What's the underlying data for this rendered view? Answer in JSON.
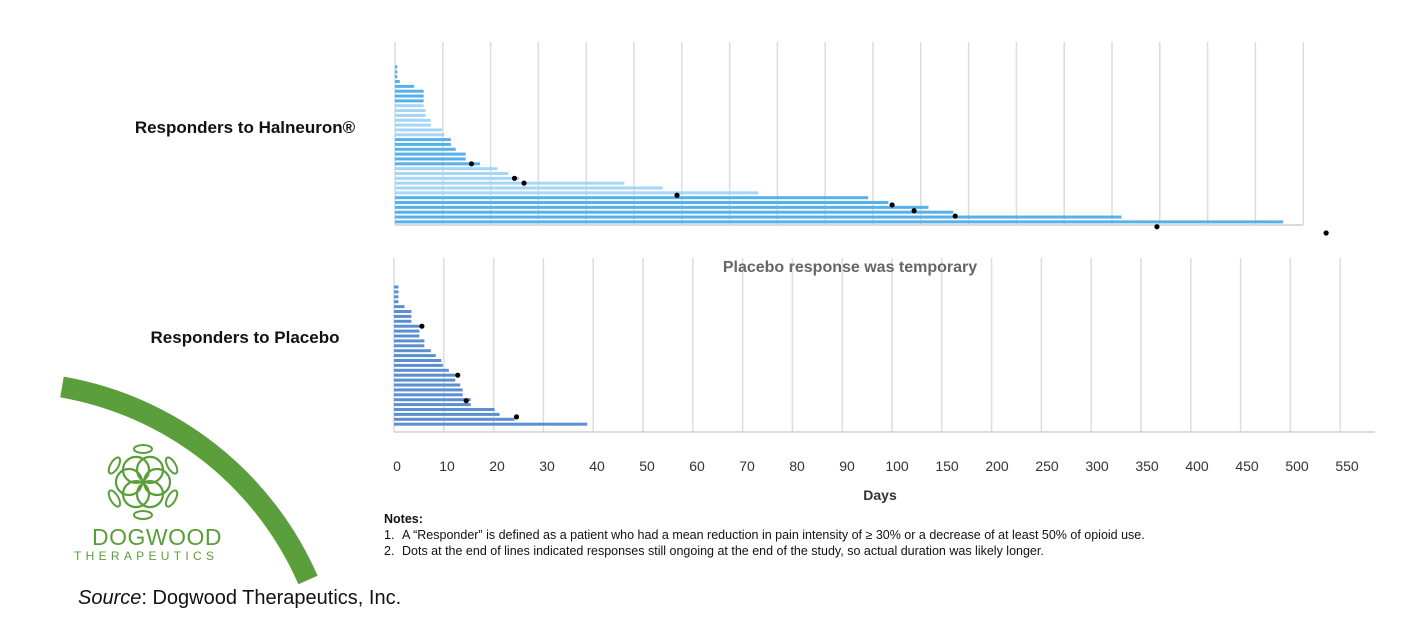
{
  "labels": {
    "halneuron": "Responders to Halneuron®",
    "placebo": "Responders to Placebo",
    "placebo_title": "Placebo response was temporary",
    "xlabel": "Days"
  },
  "notes": {
    "heading": "Notes:",
    "items": [
      {
        "num": "1.",
        "text": "A “Responder” is defined as a patient who had a mean reduction in pain intensity of ≥ 30% or a decrease of at least 50% of opioid use."
      },
      {
        "num": "2.",
        "text": "Dots at the end of lines indicated responses still ongoing at the end of the study, so actual duration was likely longer."
      }
    ]
  },
  "source": {
    "prefix": "Source",
    "text": ": Dogwood Therapeutics, Inc."
  },
  "logo": {
    "name": "DOGWOOD",
    "sub": "THERAPEUTICS",
    "color": "#5a9e3a",
    "arc_color": "#5b9e3c"
  },
  "chart_data": [
    {
      "type": "bar",
      "orientation": "horizontal",
      "name": "Responders to Halneuron®",
      "x_ticks": [
        0,
        10,
        20,
        30,
        40,
        50,
        60,
        70,
        80,
        90,
        100,
        150,
        200,
        250,
        300,
        350,
        400,
        450,
        500,
        550
      ],
      "xlabel": "Days",
      "grid": true,
      "colors": {
        "dark": "#55b1ea",
        "light": "#a5d6f6"
      },
      "light_rows": [
        8,
        9,
        10,
        11,
        12,
        13,
        14,
        21,
        22,
        23,
        24,
        25,
        26
      ],
      "values": [
        0.5,
        0.5,
        0.5,
        1,
        4,
        6,
        6,
        6,
        6,
        6.4,
        6.4,
        7.5,
        7.5,
        9.8,
        10.3,
        11.7,
        11.7,
        12.7,
        14.8,
        14.8,
        17.8,
        21.4,
        23.7,
        26,
        48,
        56,
        76,
        99,
        116,
        158,
        184,
        360,
        529
      ],
      "ongoing_dots": [
        {
          "row": 20,
          "days": 16
        },
        {
          "row": 23,
          "days": 25
        },
        {
          "row": 24,
          "days": 27
        },
        {
          "row": 26.5,
          "days": 59
        },
        {
          "row": 28.5,
          "days": 120
        },
        {
          "row": 29.7,
          "days": 143
        },
        {
          "row": 30.8,
          "days": 186
        },
        {
          "row": 33,
          "days": 397
        },
        {
          "row": 34.3,
          "days": 574
        }
      ]
    },
    {
      "type": "bar",
      "orientation": "horizontal",
      "name": "Responders to Placebo",
      "title": "Placebo response was temporary",
      "x_ticks": [
        0,
        10,
        20,
        30,
        40,
        50,
        60,
        70,
        80,
        90,
        100,
        150,
        200,
        250,
        300,
        350,
        400,
        450,
        500,
        550
      ],
      "xlabel": "Days",
      "grid": true,
      "colors": {
        "bar": "#5b8fd2"
      },
      "values": [
        0.9,
        0.9,
        0.9,
        0.9,
        2.1,
        3.5,
        3.5,
        3.5,
        5.1,
        5.1,
        5.1,
        6.1,
        6.1,
        7.4,
        8.4,
        9.5,
        9.8,
        11,
        12.3,
        12.3,
        13.3,
        13.8,
        13.8,
        15.4,
        15.4,
        20.2,
        21.2,
        24.2,
        38.8
      ],
      "ongoing_dots": [
        {
          "row": 8,
          "days": 5.6
        },
        {
          "row": 18,
          "days": 12.8
        },
        {
          "row": 23.2,
          "days": 14.5
        },
        {
          "row": 26.5,
          "days": 24.6
        }
      ]
    }
  ]
}
